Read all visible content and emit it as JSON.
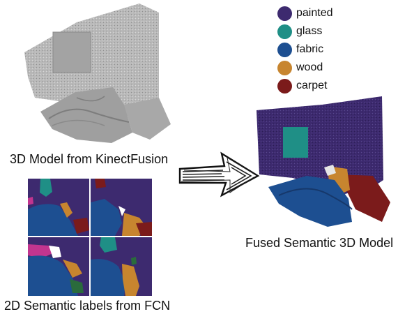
{
  "captions": {
    "kinect_model": "3D Model from KinectFusion",
    "fcn_labels": "2D Semantic labels from FCN",
    "fused_model": "Fused Semantic 3D Model"
  },
  "legend": {
    "items": [
      {
        "label": "painted",
        "color": "#3d2a6f"
      },
      {
        "label": "glass",
        "color": "#1f8f86"
      },
      {
        "label": "fabric",
        "color": "#1d4f91"
      },
      {
        "label": "wood",
        "color": "#c7852f"
      },
      {
        "label": "carpet",
        "color": "#7b1b1b"
      }
    ]
  },
  "colors": {
    "painted": "#3d2a6f",
    "glass": "#1f8f86",
    "fabric": "#1d4f91",
    "wood": "#c7852f",
    "carpet": "#7b1b1b",
    "mesh": "#b4b4b4",
    "arrow": "#222222"
  }
}
